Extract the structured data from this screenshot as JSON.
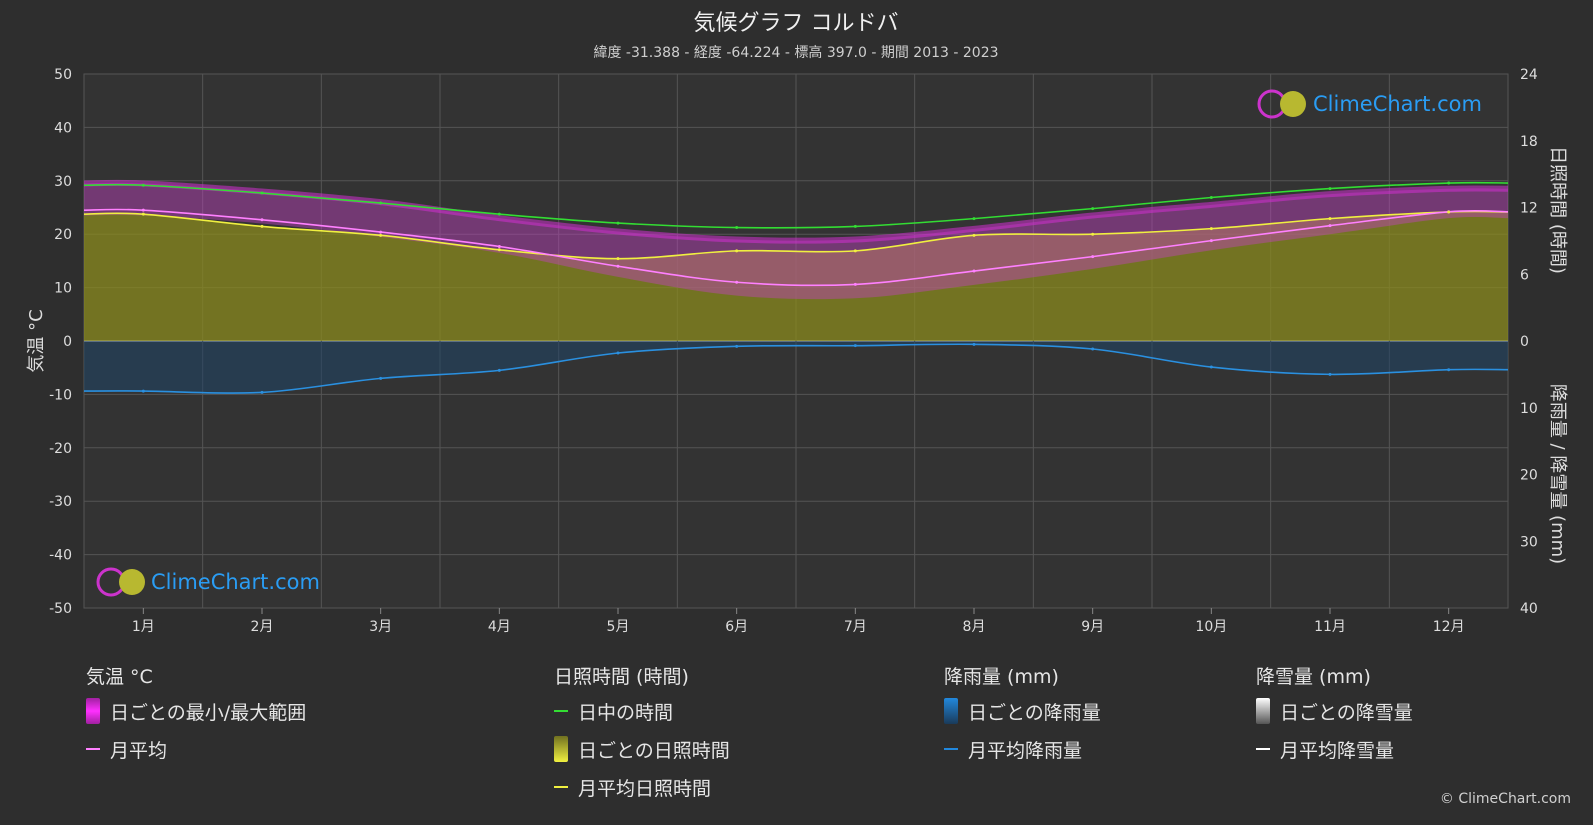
{
  "title": "気候グラフ コルドバ",
  "subtitle": "緯度 -31.388 - 経度 -64.224 - 標高 397.0 - 期間 2013 - 2023",
  "watermark": "ClimeChart.com",
  "copyright": "© ClimeChart.com",
  "colors": {
    "background": "#2e2e2e",
    "temp_range": "#e020e0",
    "temp_avg": "#ff80ff",
    "daylight": "#33dd33",
    "sunshine": "#b0b020",
    "sunshine_avg": "#f0f040",
    "rain": "#2288dd",
    "snow": "#ffffff"
  },
  "legend": {
    "temp": {
      "header": "気温 °C",
      "range_label": "日ごとの最小/最大範囲",
      "avg_label": "月平均"
    },
    "sun": {
      "header": "日照時間 (時間)",
      "daylight_label": "日中の時間",
      "daily_label": "日ごとの日照時間",
      "avg_label": "月平均日照時間"
    },
    "rain": {
      "header": "降雨量 (mm)",
      "daily_label": "日ごとの降雨量",
      "avg_label": "月平均降雨量"
    },
    "snow": {
      "header": "降雪量 (mm)",
      "daily_label": "日ごとの降雪量",
      "avg_label": "月平均降雪量"
    }
  },
  "chart_data": {
    "type": "line",
    "months": [
      "1月",
      "2月",
      "3月",
      "4月",
      "5月",
      "6月",
      "7月",
      "8月",
      "9月",
      "10月",
      "11月",
      "12月"
    ],
    "y_left": {
      "label": "気温 °C",
      "min": -50,
      "max": 50,
      "ticks": [
        50,
        40,
        30,
        20,
        10,
        0,
        -10,
        -20,
        -30,
        -40,
        -50
      ]
    },
    "y_right_top": {
      "label": "日照時間 (時間)",
      "min": 0,
      "max": 24,
      "ticks": [
        24,
        18,
        12,
        6,
        0
      ]
    },
    "y_right_bottom": {
      "label": "降雨量 / 降雪量 (mm)",
      "min": 0,
      "max": 40,
      "ticks": [
        0,
        10,
        20,
        30,
        40
      ]
    },
    "series": [
      {
        "name": "日中の時間",
        "unit": "hours",
        "values": [
          14.0,
          13.3,
          12.4,
          11.4,
          10.6,
          10.2,
          10.3,
          11.0,
          11.9,
          12.9,
          13.7,
          14.2
        ]
      },
      {
        "name": "月平均日照時間",
        "unit": "hours",
        "values": [
          11.4,
          10.3,
          9.5,
          8.2,
          7.4,
          8.1,
          8.1,
          9.5,
          9.6,
          10.1,
          11.0,
          11.6
        ]
      },
      {
        "name": "月平均",
        "unit": "°C",
        "values": [
          24.5,
          22.7,
          20.4,
          17.7,
          14.0,
          11.0,
          10.6,
          13.1,
          15.8,
          18.8,
          21.6,
          24.2
        ]
      },
      {
        "name": "月平均降雨量",
        "unit": "mm",
        "values": [
          7.5,
          7.7,
          5.6,
          4.4,
          1.8,
          0.8,
          0.7,
          0.5,
          1.2,
          3.9,
          5.0,
          4.3
        ]
      },
      {
        "name": "月平均降雪量",
        "unit": "mm",
        "values": [
          0,
          0,
          0,
          0,
          0,
          0,
          0,
          0,
          0,
          0,
          0,
          0
        ]
      }
    ],
    "temp_max_band": [
      29.5,
      28.0,
      26.0,
      23.0,
      20.5,
      19.0,
      19.0,
      21.0,
      23.5,
      25.5,
      27.5,
      28.5
    ],
    "temp_min_band": [
      23.5,
      22.0,
      19.5,
      16.5,
      12.0,
      8.5,
      8.0,
      10.5,
      13.5,
      17.0,
      20.0,
      23.0
    ],
    "grid": true
  }
}
